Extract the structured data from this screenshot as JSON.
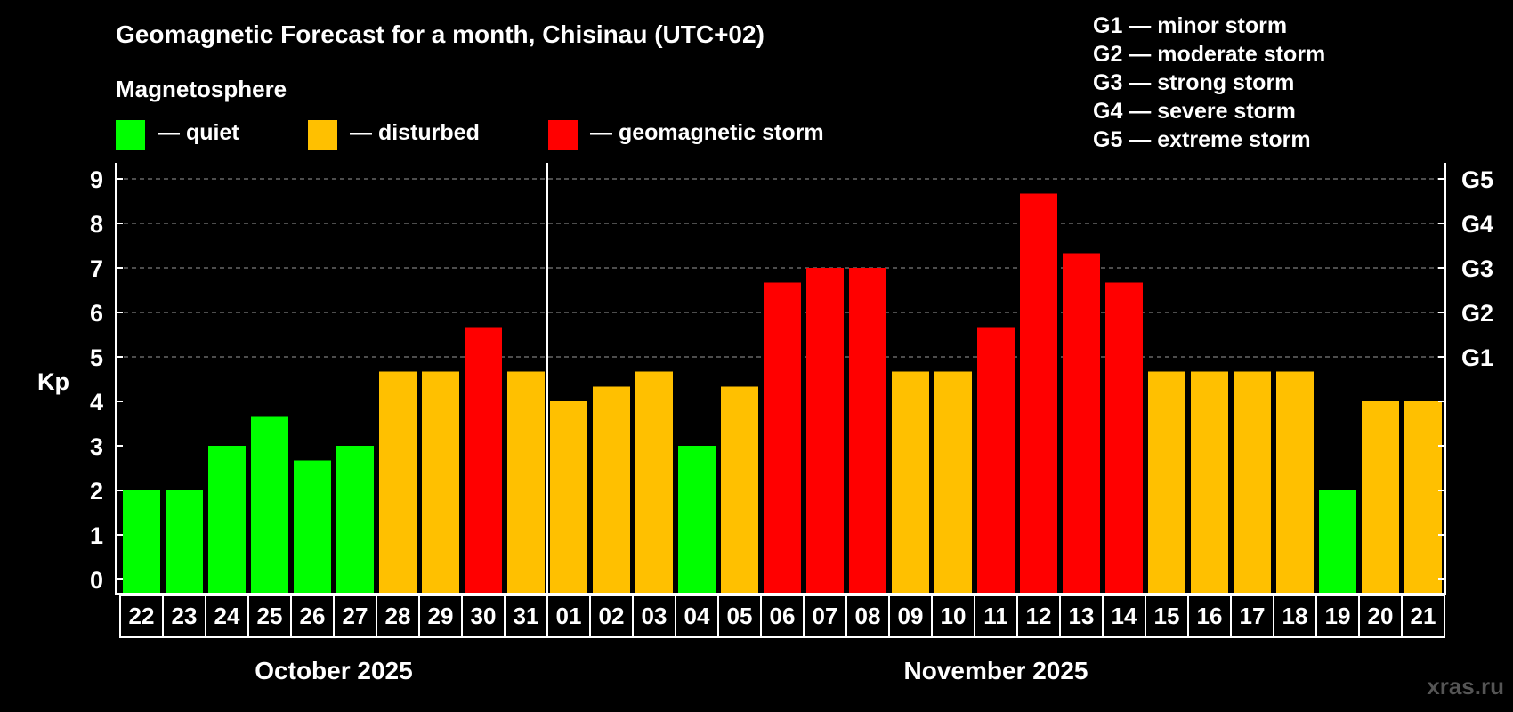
{
  "header": {
    "title": "Geomagnetic Forecast for a month, Chisinau (UTC+02)",
    "section": "Magnetosphere"
  },
  "legend": [
    {
      "label": "— quiet",
      "color": "#00ff00"
    },
    {
      "label": "— disturbed",
      "color": "#ffc000"
    },
    {
      "label": "— geomagnetic storm",
      "color": "#ff0000"
    }
  ],
  "storm_legend": [
    "G1 — minor storm",
    "G2 — moderate storm",
    "G3 — strong storm",
    "G4 — severe storm",
    "G5 — extreme storm"
  ],
  "watermark": "xras.ru",
  "colors": {
    "quiet": "#00ff00",
    "disturbed": "#ffc000",
    "storm": "#ff0000"
  },
  "chart_data": {
    "type": "bar",
    "title": "Geomagnetic Forecast for a month, Chisinau (UTC+02)",
    "ylabel": "Kp",
    "ylim": [
      0,
      9
    ],
    "yticks": [
      "0",
      "1",
      "2",
      "3",
      "4",
      "5",
      "6",
      "7",
      "8",
      "9"
    ],
    "right_ticks": [
      {
        "value": 5,
        "label": "G1"
      },
      {
        "value": 6,
        "label": "G2"
      },
      {
        "value": 7,
        "label": "G3"
      },
      {
        "value": 8,
        "label": "G4"
      },
      {
        "value": 9,
        "label": "G5"
      }
    ],
    "categories": [
      "22",
      "23",
      "24",
      "25",
      "26",
      "27",
      "28",
      "29",
      "30",
      "31",
      "01",
      "02",
      "03",
      "04",
      "05",
      "06",
      "07",
      "08",
      "09",
      "10",
      "11",
      "12",
      "13",
      "14",
      "15",
      "16",
      "17",
      "18",
      "19",
      "20",
      "21"
    ],
    "values": [
      2,
      2,
      3,
      3.67,
      2.67,
      3,
      4.67,
      4.67,
      5.67,
      4.67,
      4,
      4.33,
      4.67,
      3,
      4.33,
      6.67,
      7,
      7,
      4.67,
      4.67,
      5.67,
      8.67,
      7.33,
      6.67,
      4.67,
      4.67,
      4.67,
      4.67,
      2,
      4,
      4
    ],
    "levels": [
      "quiet",
      "quiet",
      "quiet",
      "quiet",
      "quiet",
      "quiet",
      "disturbed",
      "disturbed",
      "storm",
      "disturbed",
      "disturbed",
      "disturbed",
      "disturbed",
      "quiet",
      "disturbed",
      "storm",
      "storm",
      "storm",
      "disturbed",
      "disturbed",
      "storm",
      "storm",
      "storm",
      "storm",
      "disturbed",
      "disturbed",
      "disturbed",
      "disturbed",
      "quiet",
      "disturbed",
      "disturbed"
    ],
    "months": [
      {
        "label": "October 2025",
        "start": 0,
        "end": 9
      },
      {
        "label": "November 2025",
        "start": 10,
        "end": 30
      }
    ],
    "grid": true
  }
}
